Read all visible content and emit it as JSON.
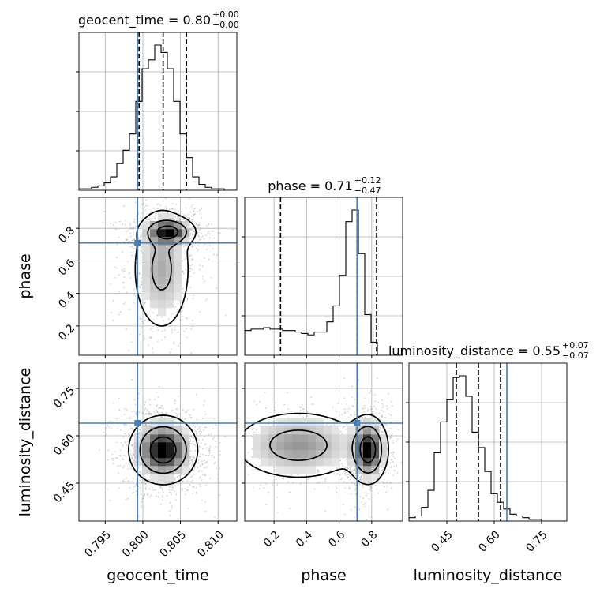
{
  "chart_data": {
    "type": "corner",
    "parameters": [
      "geocent_time",
      "phase",
      "luminosity_distance"
    ],
    "truth_color": "#4a7db3",
    "truths": {
      "geocent_time": 0.7993,
      "phase": 0.71,
      "luminosity_distance": 0.64
    },
    "titles": [
      {
        "param": "geocent_time",
        "text": "geocent_time = 0.80",
        "plus": "+0.00",
        "minus": "−0.00"
      },
      {
        "param": "phase",
        "text": "phase = 0.71",
        "plus": "+0.12",
        "minus": "−0.47"
      },
      {
        "param": "luminosity_distance",
        "text": "luminosity_distance = 0.55",
        "plus": "+0.07",
        "minus": "−0.07"
      }
    ],
    "ranges": {
      "geocent_time": [
        0.7915,
        0.8125
      ],
      "phase": [
        0.02,
        0.99
      ],
      "luminosity_distance": [
        0.33,
        0.83
      ]
    },
    "ticks": {
      "geocent_time": {
        "values": [
          0.795,
          0.8,
          0.805,
          0.81
        ],
        "labels": [
          "0.795",
          "0.800",
          "0.805",
          "0.810"
        ]
      },
      "phase": {
        "values": [
          0.2,
          0.4,
          0.6,
          0.8
        ],
        "labels": [
          "0.2",
          "0.4",
          "0.6",
          "0.8"
        ]
      },
      "luminosity_distance": {
        "values": [
          0.45,
          0.6,
          0.75
        ],
        "labels": [
          "0.45",
          "0.60",
          "0.75"
        ]
      }
    },
    "quantiles": {
      "geocent_time": [
        0.7995,
        0.8027,
        0.8058
      ],
      "phase": [
        0.24,
        0.71,
        0.83
      ],
      "luminosity_distance": [
        0.48,
        0.55,
        0.62
      ]
    },
    "histograms": {
      "geocent_time": {
        "edges_start": 0.7915,
        "bin_width": 0.00084,
        "counts": [
          1,
          1,
          2,
          3,
          5,
          9,
          18,
          27,
          38,
          60,
          82,
          88,
          98,
          93,
          82,
          60,
          38,
          22,
          9,
          4,
          2,
          1,
          1,
          0,
          0
        ]
      },
      "phase": {
        "edges_start": 0.02,
        "bin_width": 0.0388,
        "counts": [
          17,
          18,
          18,
          19,
          18,
          18,
          17,
          17,
          16,
          15,
          14,
          16,
          16,
          23,
          34,
          55,
          92,
          100,
          70,
          28,
          9,
          0,
          0,
          0,
          0
        ]
      },
      "luminosity_distance": {
        "edges_start": 0.33,
        "bin_width": 0.02,
        "counts": [
          2,
          3,
          8,
          18,
          40,
          58,
          71,
          84,
          85,
          73,
          52,
          43,
          29,
          16,
          11,
          7,
          4,
          3,
          2,
          1,
          1,
          0,
          0,
          0,
          0
        ]
      }
    },
    "joint": [
      {
        "x": "geocent_time",
        "y": "phase",
        "blobs": [
          {
            "cx": 0.8035,
            "cy": 0.78,
            "sx": 0.0018,
            "sy": 0.045,
            "w": 0.6
          },
          {
            "cx": 0.8025,
            "cy": 0.55,
            "sx": 0.0022,
            "sy": 0.22,
            "w": 0.4
          }
        ]
      },
      {
        "x": "geocent_time",
        "y": "luminosity_distance",
        "blobs": [
          {
            "cx": 0.8027,
            "cy": 0.555,
            "sx": 0.0023,
            "sy": 0.055,
            "w": 1.0
          }
        ]
      },
      {
        "x": "phase",
        "y": "luminosity_distance",
        "blobs": [
          {
            "cx": 0.78,
            "cy": 0.555,
            "sx": 0.06,
            "sy": 0.055,
            "w": 0.62
          },
          {
            "cx": 0.35,
            "cy": 0.57,
            "sx": 0.22,
            "sy": 0.06,
            "w": 0.38
          }
        ]
      }
    ]
  }
}
